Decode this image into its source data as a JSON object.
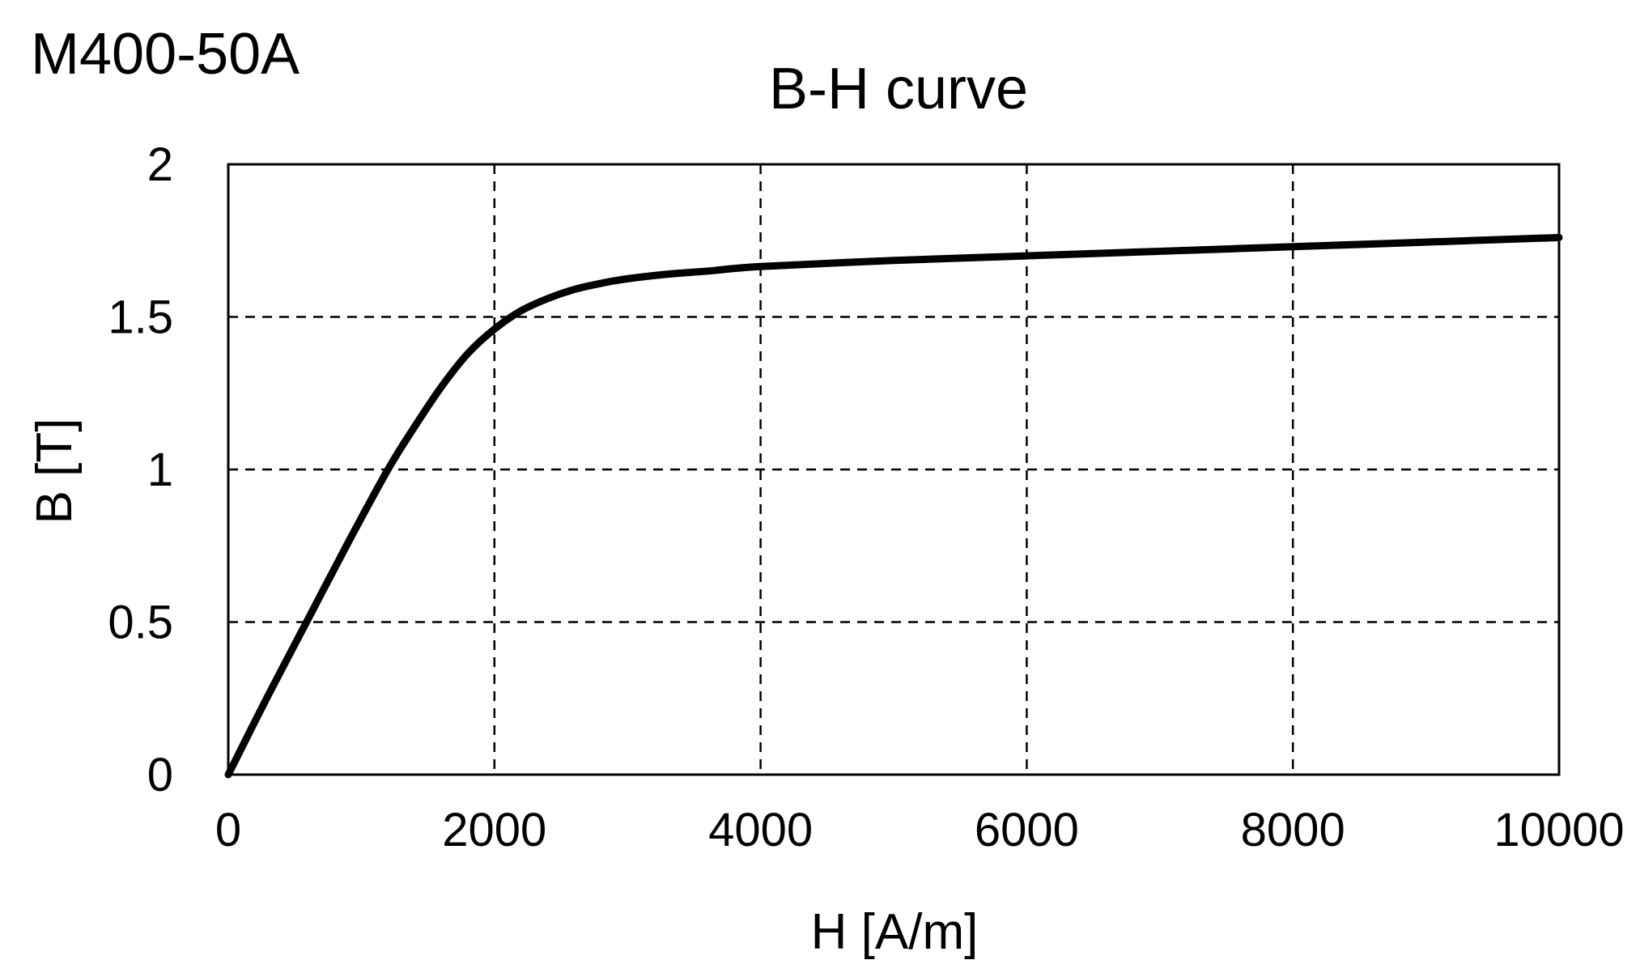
{
  "material_label": "M400-50A",
  "chart_data": {
    "type": "line",
    "title": "B-H curve",
    "xlabel": "H [A/m]",
    "ylabel": "B [T]",
    "xlim": [
      0,
      10000
    ],
    "ylim": [
      0,
      2
    ],
    "x_ticks": [
      0,
      2000,
      4000,
      6000,
      8000,
      10000
    ],
    "y_ticks": [
      0,
      0.5,
      1,
      1.5,
      2
    ],
    "x_tick_labels": [
      "0",
      "2000",
      "4000",
      "6000",
      "8000",
      "10000"
    ],
    "y_tick_labels": [
      "0",
      "0.5",
      "1",
      "1.5",
      "2"
    ],
    "grid": true,
    "grid_style": "dashed",
    "legend": false,
    "series": [
      {
        "color": "#000000",
        "x": [
          0,
          300,
          600,
          900,
          1200,
          1400,
          1600,
          1800,
          2000,
          2200,
          2400,
          2600,
          2800,
          3000,
          3300,
          3600,
          4000,
          5000,
          6000,
          7000,
          8000,
          9000,
          10000
        ],
        "y": [
          0,
          0.26,
          0.51,
          0.76,
          1.0,
          1.14,
          1.27,
          1.38,
          1.46,
          1.52,
          1.56,
          1.59,
          1.61,
          1.625,
          1.64,
          1.65,
          1.665,
          1.685,
          1.7,
          1.715,
          1.73,
          1.745,
          1.76
        ]
      }
    ]
  }
}
